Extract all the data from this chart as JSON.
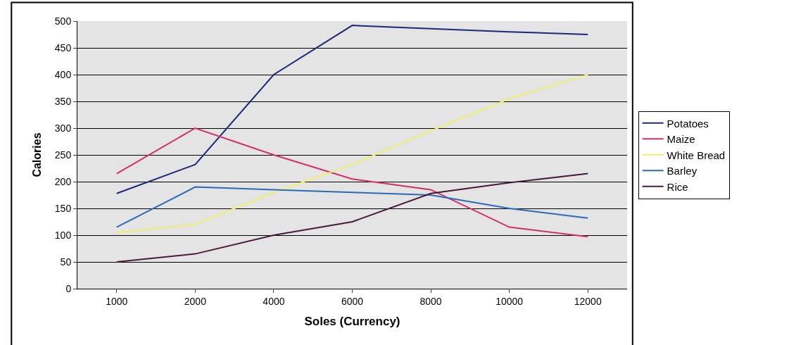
{
  "chart_data": {
    "type": "line",
    "xlabel": "Soles (Currency)",
    "ylabel": "Calories",
    "categories": [
      "1000",
      "2000",
      "4000",
      "6000",
      "8000",
      "10000",
      "12000"
    ],
    "series": [
      {
        "name": "Potatoes",
        "color": "#1a2a78",
        "values": [
          178,
          232,
          400,
          492,
          486,
          480,
          475
        ]
      },
      {
        "name": "Maize",
        "color": "#d0306a",
        "values": [
          215,
          300,
          250,
          205,
          185,
          115,
          97
        ]
      },
      {
        "name": "White Bread",
        "color": "#f2ee70",
        "values": [
          105,
          120,
          180,
          232,
          295,
          355,
          400
        ]
      },
      {
        "name": "Barley",
        "color": "#2a6ab8",
        "values": [
          115,
          190,
          185,
          180,
          175,
          150,
          132
        ]
      },
      {
        "name": "Rice",
        "color": "#4a1a3a",
        "values": [
          50,
          65,
          100,
          125,
          178,
          198,
          215
        ]
      }
    ],
    "ylim": [
      0,
      500
    ],
    "yticks": [
      0,
      50,
      100,
      150,
      200,
      250,
      300,
      350,
      400,
      450,
      500
    ],
    "grid": "y",
    "legend": "right",
    "marker": "none",
    "line_style": "solid"
  }
}
